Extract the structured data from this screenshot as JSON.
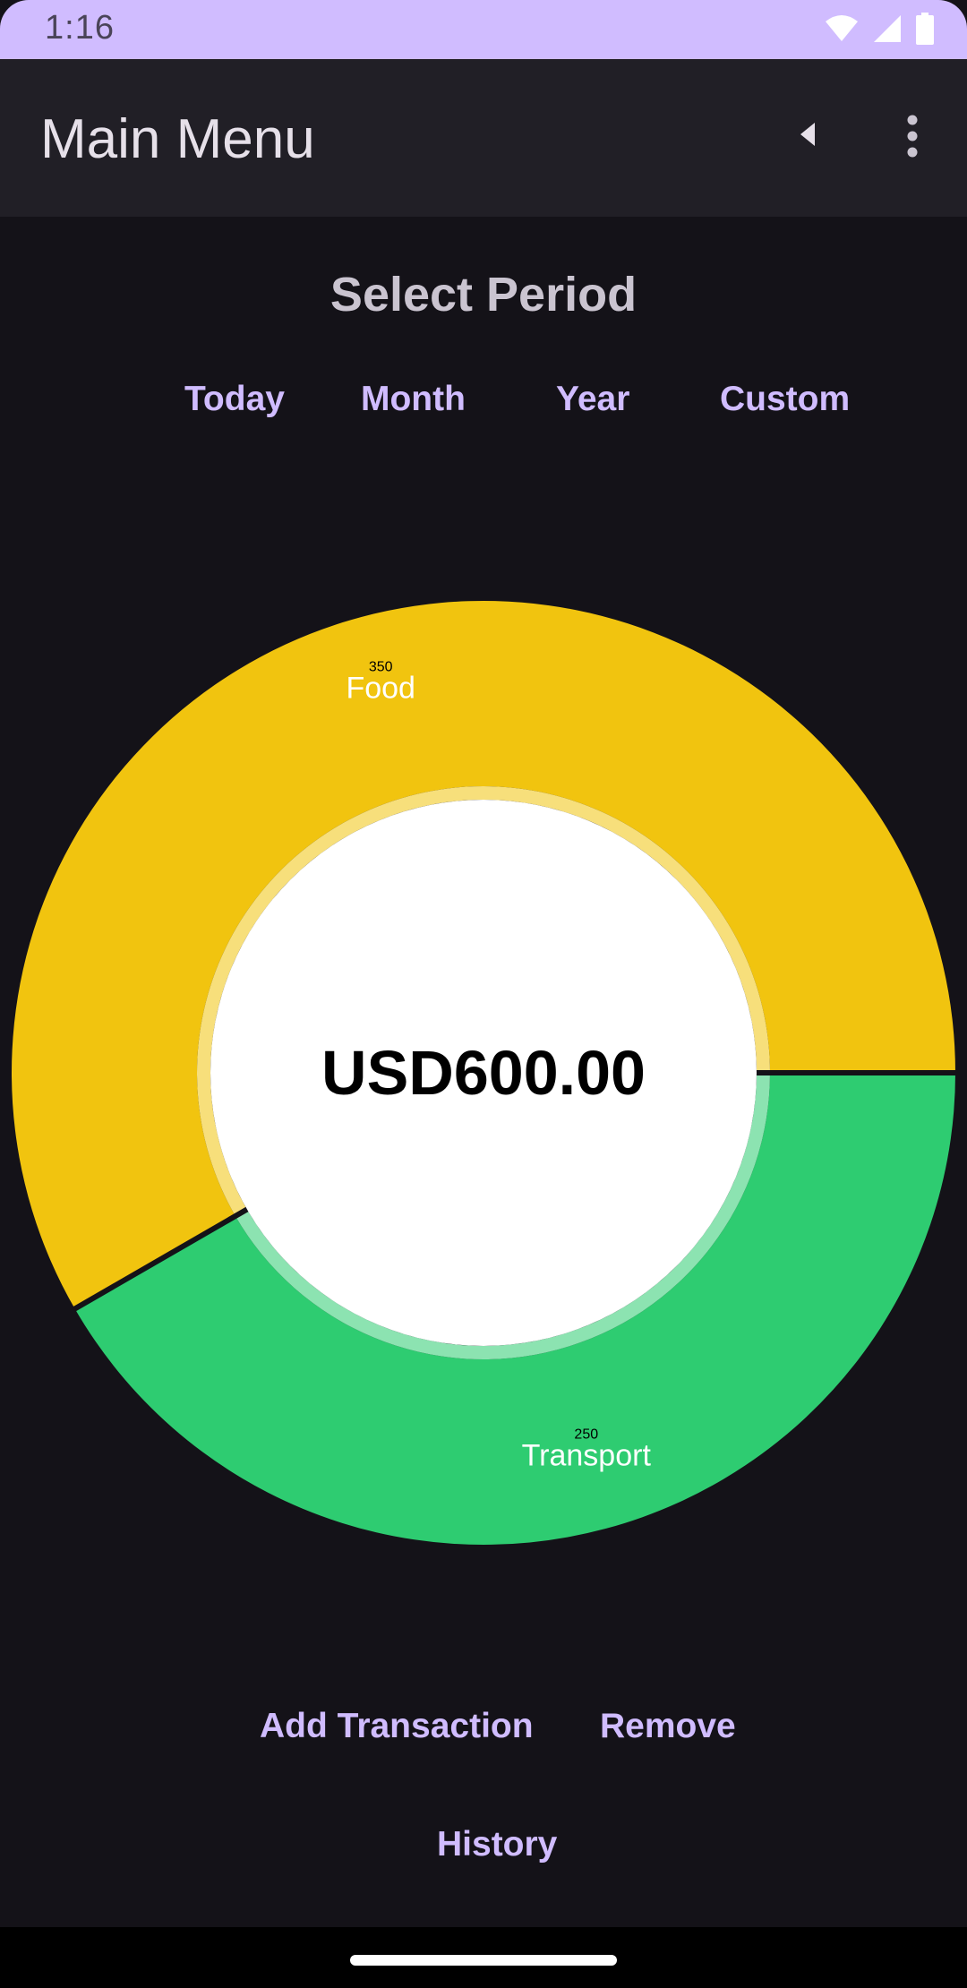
{
  "status_bar": {
    "time": "1:16",
    "icons": [
      "wifi-icon",
      "cellular-signal-icon",
      "battery-icon"
    ],
    "background_color": "#D0BCFF"
  },
  "app_bar": {
    "title": "Main Menu",
    "actions": [
      "back-icon",
      "overflow-menu-icon"
    ]
  },
  "period": {
    "title": "Select Period",
    "options": [
      "Today",
      "Month",
      "Year",
      "Custom"
    ]
  },
  "chart_data": {
    "type": "pie",
    "variant": "donut",
    "center_text": "USD600.00",
    "categories": [
      "Food",
      "Transport"
    ],
    "values": [
      350,
      250
    ],
    "colors": [
      "#F1C40F",
      "#2ECC71"
    ],
    "legend": "none"
  },
  "actions": {
    "add_transaction": "Add Transaction",
    "remove": "Remove",
    "history": "History"
  },
  "colors": {
    "accent": "#D0BCFF",
    "background": "#141218",
    "app_bar": "#211F26"
  }
}
